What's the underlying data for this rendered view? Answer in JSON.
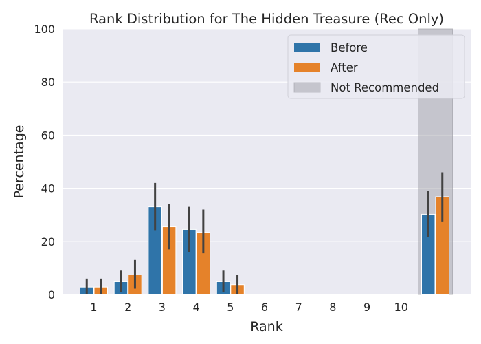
{
  "chart_data": {
    "type": "bar",
    "title": "Rank Distribution for The Hidden Treasure (Rec Only)",
    "xlabel": "Rank",
    "ylabel": "Percentage",
    "ylim": [
      0,
      100
    ],
    "yticks": [
      0,
      20,
      40,
      60,
      80,
      100
    ],
    "categories": [
      "1",
      "2",
      "3",
      "4",
      "5",
      "6",
      "7",
      "8",
      "9",
      "10",
      ""
    ],
    "series": [
      {
        "name": "Before",
        "color": "#2f74a9",
        "values": [
          2.8,
          4.8,
          33.0,
          24.5,
          4.8,
          0,
          0,
          0,
          0,
          0,
          30.2
        ],
        "ci_low": [
          0,
          0.8,
          24.0,
          16.0,
          0.8,
          0,
          0,
          0,
          0,
          0,
          21.5
        ],
        "ci_high": [
          6.0,
          9.0,
          42.0,
          33.0,
          9.0,
          0,
          0,
          0,
          0,
          0,
          39.0
        ]
      },
      {
        "name": "After",
        "color": "#e5822a",
        "values": [
          2.8,
          7.4,
          25.5,
          23.4,
          3.7,
          0,
          0,
          0,
          0,
          0,
          36.8
        ],
        "ci_low": [
          0,
          2.2,
          17.0,
          15.5,
          0,
          0,
          0,
          0,
          0,
          0,
          27.5
        ],
        "ci_high": [
          6.0,
          13.0,
          34.0,
          32.0,
          7.5,
          0,
          0,
          0,
          0,
          0,
          46.0
        ]
      }
    ],
    "highlight": {
      "name": "Not Recommended",
      "category_index": 10,
      "color": "#a0a0a8"
    },
    "grid": true,
    "legend": "top-right"
  }
}
